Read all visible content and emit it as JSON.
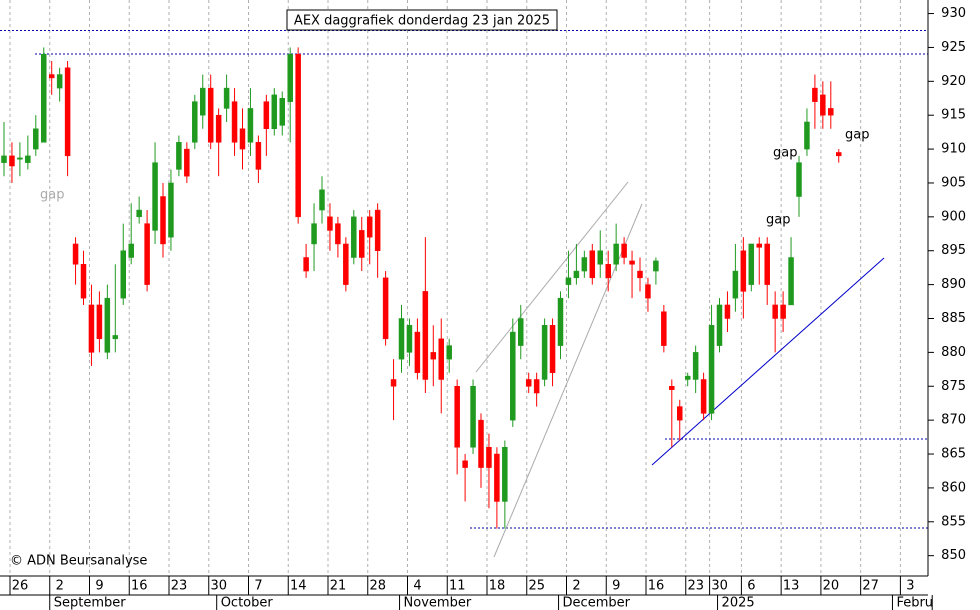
{
  "chart_data": {
    "type": "candlestick",
    "title": "AEX daggrafiek donderdag 23 jan 2025",
    "credit": "© ADN Beursanalyse",
    "annotations": [
      "gap",
      "gap",
      "gap",
      "gap"
    ],
    "categories": [
      "26",
      null,
      null,
      null,
      null,
      "2",
      null,
      null,
      null,
      null,
      "9",
      null,
      null,
      null,
      null,
      "16",
      null,
      null,
      null,
      null,
      "23",
      null,
      null,
      null,
      null,
      "30",
      null,
      null,
      null,
      null,
      "7",
      null,
      null,
      null,
      null,
      "14",
      null,
      null,
      null,
      null,
      "21",
      null,
      null,
      null,
      null,
      "28",
      null,
      null,
      null,
      null,
      "4",
      null,
      null,
      null,
      null,
      "11",
      null,
      null,
      null,
      null,
      "18",
      null,
      null,
      null,
      null,
      "25",
      null,
      null,
      null,
      null,
      "2",
      null,
      null,
      null,
      null,
      "9",
      null,
      null,
      null,
      null,
      "16",
      null,
      null,
      null,
      null,
      "23",
      null,
      null,
      "30",
      null,
      null,
      null,
      "6",
      null,
      null,
      null,
      null,
      "13",
      null,
      null,
      null,
      null,
      "20",
      null,
      null,
      null,
      null,
      "27",
      null,
      null,
      null,
      null,
      "3",
      null,
      null,
      null,
      null
    ],
    "months": [
      null,
      null,
      null,
      null,
      null,
      "September",
      null,
      null,
      null,
      null,
      null,
      null,
      null,
      null,
      null,
      null,
      null,
      null,
      null,
      null,
      null,
      null,
      null,
      null,
      null,
      null,
      "October",
      null,
      null,
      null,
      null,
      null,
      null,
      null,
      null,
      null,
      null,
      null,
      null,
      null,
      null,
      null,
      null,
      null,
      null,
      null,
      null,
      null,
      null,
      "November",
      null,
      null,
      null,
      null,
      null,
      null,
      null,
      null,
      null,
      null,
      null,
      null,
      null,
      null,
      null,
      null,
      null,
      null,
      null,
      "December",
      null,
      null,
      null,
      null,
      null,
      null,
      null,
      null,
      null,
      null,
      null,
      null,
      null,
      null,
      null,
      null,
      null,
      null,
      null,
      "2025",
      null,
      null,
      null,
      null,
      null,
      null,
      null,
      null,
      null,
      null,
      null,
      null,
      null,
      null,
      null,
      null,
      null,
      null,
      null,
      null,
      null,
      "Febru",
      null,
      null,
      null,
      null
    ],
    "open": [
      908,
      909,
      908.5,
      908,
      910,
      911,
      921,
      919,
      922,
      896,
      893,
      887,
      887,
      880,
      882,
      888,
      894,
      900,
      899,
      898,
      903,
      897,
      907,
      910,
      911,
      915,
      919,
      915,
      916,
      917,
      913,
      911,
      911,
      917,
      913,
      913.5,
      917,
      924,
      894,
      896,
      901,
      900,
      899,
      896,
      894,
      898,
      900,
      901,
      891,
      876,
      879,
      880,
      883,
      889,
      880,
      882,
      879,
      875,
      864,
      866,
      870,
      866,
      865,
      858,
      870,
      881,
      876,
      876,
      876,
      884,
      881,
      890,
      891,
      892,
      895,
      893,
      893,
      893,
      896,
      893.5,
      892,
      890,
      892,
      886,
      875,
      872,
      876,
      876,
      876,
      871,
      881,
      887,
      888,
      895,
      890,
      896,
      896,
      887,
      887,
      887,
      903,
      910,
      919,
      918,
      916,
      909.5,
      null,
      null,
      null,
      null,
      null,
      null,
      null,
      null,
      null,
      null,
      null
    ],
    "high": [
      914,
      911,
      911,
      912,
      915,
      925,
      923,
      922,
      923,
      897,
      895,
      890,
      889,
      890,
      893,
      899,
      902,
      903,
      901,
      911,
      905,
      907,
      912,
      911,
      918,
      921,
      921,
      916,
      921,
      919,
      916,
      919,
      912,
      918,
      919,
      918.5,
      925,
      925,
      896,
      902,
      906,
      902,
      900,
      897,
      901,
      900,
      901,
      902,
      892,
      879,
      887,
      885,
      885,
      897,
      884,
      885,
      882,
      876,
      865,
      876,
      871,
      868,
      866,
      867,
      885,
      887,
      877,
      877,
      885,
      885,
      889,
      895,
      896,
      895,
      896,
      898,
      895,
      899,
      897,
      895,
      894,
      891,
      894,
      887,
      876,
      873,
      877,
      881,
      877,
      887,
      888,
      889,
      896,
      897,
      896,
      897,
      897,
      889,
      889,
      897,
      909,
      916,
      921,
      920,
      920,
      910,
      null,
      null,
      null,
      null,
      null,
      null,
      null,
      null,
      null,
      null,
      null
    ],
    "low": [
      906,
      905,
      906,
      907,
      909,
      911,
      918,
      917,
      906,
      890,
      887,
      878,
      880,
      879,
      880,
      887,
      893,
      899,
      889,
      896,
      894,
      895,
      906,
      905,
      910,
      913,
      910,
      906,
      914,
      909,
      907,
      909,
      905,
      909,
      912,
      912,
      911,
      899,
      891,
      892,
      899,
      895,
      894,
      889,
      893,
      892,
      893,
      891,
      881,
      870,
      877,
      878,
      876,
      874,
      875,
      871,
      877,
      862,
      858,
      865,
      860,
      857,
      854,
      854,
      869,
      879,
      874,
      872,
      875,
      875,
      879,
      888,
      890,
      891,
      890,
      891,
      889,
      892,
      893,
      888,
      889,
      886,
      890,
      880,
      866,
      867,
      875,
      874,
      870,
      870,
      880,
      883,
      886,
      885,
      889,
      890,
      887,
      880,
      883,
      887,
      900,
      909,
      913,
      913,
      913,
      908,
      null,
      null,
      null,
      null,
      null,
      null,
      null,
      null,
      null,
      null,
      null
    ],
    "close": [
      909,
      907.5,
      908.7,
      909,
      913,
      924,
      920.5,
      921,
      909,
      893,
      888,
      880,
      882,
      888,
      882.5,
      895,
      896,
      901,
      890,
      908,
      896,
      905,
      911,
      906,
      917,
      919,
      911,
      911,
      919,
      911,
      910,
      916,
      907,
      913,
      918,
      917.5,
      924,
      900,
      892,
      899,
      904,
      898,
      896,
      890,
      900,
      894,
      897,
      895,
      882,
      875,
      885,
      884,
      877,
      876,
      879,
      876,
      881,
      866,
      863,
      875,
      863,
      863,
      858,
      866,
      883,
      885,
      875,
      874,
      884,
      877,
      888,
      891,
      892,
      894,
      891,
      895,
      891,
      896,
      894,
      893,
      891,
      888,
      893.5,
      881,
      874.5,
      870,
      876.5,
      880,
      871,
      884,
      887,
      885,
      892,
      889,
      896,
      895.5,
      890,
      885,
      885,
      894,
      908,
      914,
      917,
      915,
      915,
      909,
      null,
      null,
      null,
      null,
      null,
      null,
      null,
      null,
      null,
      null,
      null
    ],
    "up_color": "#1f9a1f",
    "down_color": "#ff0000",
    "ylim": [
      847,
      932
    ],
    "yticks": [
      850,
      855,
      860,
      865,
      870,
      875,
      880,
      885,
      890,
      895,
      900,
      905,
      910,
      915,
      920,
      925,
      930
    ],
    "grid": true
  }
}
